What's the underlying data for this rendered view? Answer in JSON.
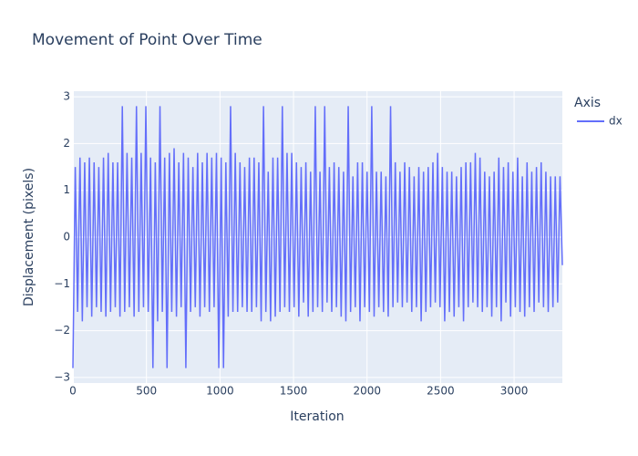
{
  "chart_data": {
    "type": "line",
    "title": "Movement of Point Over Time",
    "x_label": "Iteration",
    "y_label": "Displacement (pixels)",
    "legend_title": "Axis",
    "legend_position": "right",
    "grid": true,
    "xlim": [
      0,
      3328
    ],
    "ylim": [
      -3.12,
      3.12
    ],
    "xticks": [
      0,
      500,
      1000,
      1500,
      2000,
      2500,
      3000
    ],
    "yticks": [
      {
        "value": -3,
        "label": "−3"
      },
      {
        "value": -2,
        "label": "−2"
      },
      {
        "value": -1,
        "label": "−1"
      },
      0,
      1,
      2,
      3
    ],
    "x": [
      0,
      16,
      32,
      48,
      64,
      80,
      96,
      112,
      128,
      144,
      160,
      176,
      192,
      208,
      224,
      240,
      256,
      272,
      288,
      304,
      320,
      336,
      352,
      368,
      384,
      400,
      416,
      432,
      448,
      464,
      480,
      496,
      512,
      528,
      544,
      560,
      576,
      592,
      608,
      624,
      640,
      656,
      672,
      688,
      704,
      720,
      736,
      752,
      768,
      784,
      800,
      816,
      832,
      848,
      864,
      880,
      896,
      912,
      928,
      944,
      960,
      976,
      992,
      1008,
      1024,
      1040,
      1056,
      1072,
      1088,
      1104,
      1120,
      1136,
      1152,
      1168,
      1184,
      1200,
      1216,
      1232,
      1248,
      1264,
      1280,
      1296,
      1312,
      1328,
      1344,
      1360,
      1376,
      1392,
      1408,
      1424,
      1440,
      1456,
      1472,
      1488,
      1504,
      1520,
      1536,
      1552,
      1568,
      1584,
      1600,
      1616,
      1632,
      1648,
      1664,
      1680,
      1696,
      1712,
      1728,
      1744,
      1760,
      1776,
      1792,
      1808,
      1824,
      1840,
      1856,
      1872,
      1888,
      1904,
      1920,
      1936,
      1952,
      1968,
      1984,
      2000,
      2016,
      2032,
      2048,
      2064,
      2080,
      2096,
      2112,
      2128,
      2144,
      2160,
      2176,
      2192,
      2208,
      2224,
      2240,
      2256,
      2272,
      2288,
      2304,
      2320,
      2336,
      2352,
      2368,
      2384,
      2400,
      2416,
      2432,
      2448,
      2464,
      2480,
      2496,
      2512,
      2528,
      2544,
      2560,
      2576,
      2592,
      2608,
      2624,
      2640,
      2656,
      2672,
      2688,
      2704,
      2720,
      2736,
      2752,
      2768,
      2784,
      2800,
      2816,
      2832,
      2848,
      2864,
      2880,
      2896,
      2912,
      2928,
      2944,
      2960,
      2976,
      2992,
      3008,
      3024,
      3040,
      3056,
      3072,
      3088,
      3104,
      3120,
      3136,
      3152,
      3168,
      3184,
      3200,
      3216,
      3232,
      3248,
      3264,
      3280,
      3296,
      3312,
      3328
    ],
    "series": [
      {
        "name": "dx",
        "color": "#636efa",
        "values": [
          -2.8,
          1.5,
          -1.6,
          1.7,
          -1.8,
          1.6,
          -1.5,
          1.7,
          -1.7,
          1.6,
          -1.5,
          1.5,
          -1.6,
          1.7,
          -1.7,
          1.8,
          -1.6,
          1.6,
          -1.5,
          1.6,
          -1.7,
          2.8,
          -1.6,
          1.8,
          -1.5,
          1.7,
          -1.7,
          2.8,
          -1.6,
          1.8,
          -1.5,
          2.8,
          -1.6,
          1.7,
          -2.8,
          1.6,
          -1.8,
          2.8,
          -1.6,
          1.7,
          -2.8,
          1.8,
          -1.6,
          1.9,
          -1.7,
          1.6,
          -1.5,
          1.8,
          -2.8,
          1.7,
          -1.6,
          1.5,
          -1.5,
          1.8,
          -1.7,
          1.6,
          -1.5,
          1.8,
          -1.6,
          1.7,
          -1.5,
          1.8,
          -2.8,
          1.7,
          -2.8,
          1.6,
          -1.7,
          2.8,
          -1.6,
          1.8,
          -1.6,
          1.6,
          -1.5,
          1.5,
          -1.6,
          1.7,
          -1.6,
          1.7,
          -1.5,
          1.6,
          -1.8,
          2.8,
          -1.6,
          1.4,
          -1.8,
          1.7,
          -1.7,
          1.7,
          -1.6,
          2.8,
          -1.5,
          1.8,
          -1.6,
          1.8,
          -1.5,
          1.6,
          -1.7,
          1.5,
          -1.4,
          1.6,
          -1.7,
          1.4,
          -1.6,
          2.8,
          -1.5,
          1.4,
          -1.6,
          2.8,
          -1.4,
          1.5,
          -1.6,
          1.6,
          -1.5,
          1.5,
          -1.7,
          1.4,
          -1.8,
          2.8,
          -1.6,
          1.3,
          -1.5,
          1.6,
          -1.8,
          1.6,
          -1.5,
          1.4,
          -1.6,
          2.8,
          -1.7,
          1.4,
          -1.5,
          1.4,
          -1.6,
          1.3,
          -1.7,
          2.8,
          -1.5,
          1.6,
          -1.4,
          1.4,
          -1.5,
          1.6,
          -1.4,
          1.5,
          -1.6,
          1.3,
          -1.5,
          1.5,
          -1.8,
          1.4,
          -1.6,
          1.5,
          -1.5,
          1.6,
          -1.4,
          1.8,
          -1.5,
          1.5,
          -1.8,
          1.4,
          -1.6,
          1.4,
          -1.7,
          1.3,
          -1.5,
          1.5,
          -1.8,
          1.6,
          -1.5,
          1.6,
          -1.4,
          1.8,
          -1.5,
          1.7,
          -1.6,
          1.4,
          -1.5,
          1.3,
          -1.7,
          1.4,
          -1.5,
          1.7,
          -1.8,
          1.5,
          -1.4,
          1.6,
          -1.7,
          1.4,
          -1.5,
          1.7,
          -1.6,
          1.3,
          -1.7,
          1.6,
          -1.5,
          1.4,
          -1.6,
          1.5,
          -1.4,
          1.6,
          -1.5,
          1.4,
          -1.6,
          1.3,
          -1.5,
          1.3,
          -1.4,
          1.3,
          -0.6
        ]
      }
    ]
  }
}
